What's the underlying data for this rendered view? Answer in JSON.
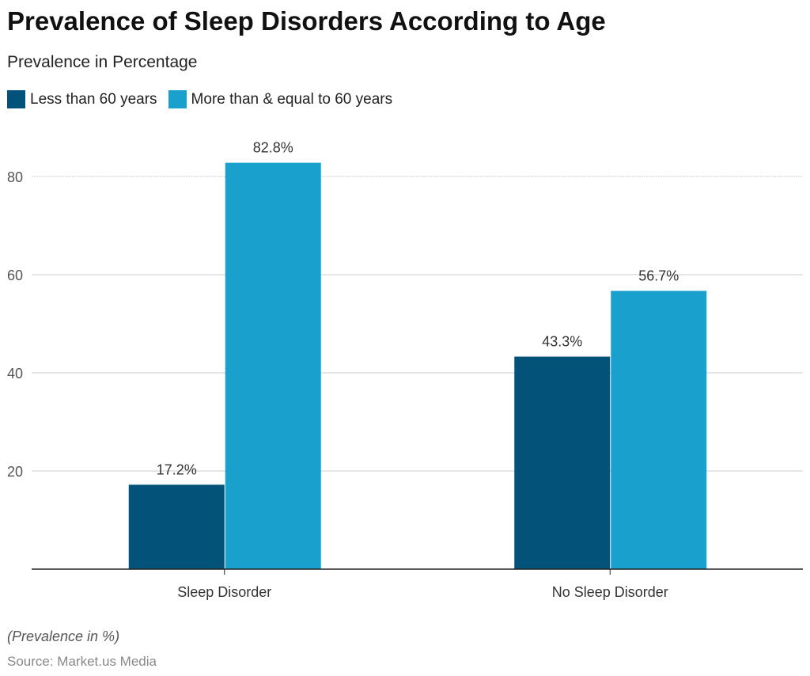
{
  "chart_data": {
    "type": "bar",
    "title": "Prevalence of Sleep Disorders According to Age",
    "subtitle": "Prevalence in Percentage",
    "categories": [
      "Sleep Disorder",
      "No Sleep Disorder"
    ],
    "series": [
      {
        "name": "Less than 60 years",
        "color": "#03527a",
        "values": [
          17.2,
          43.3
        ],
        "labels": [
          "17.2%",
          "43.3%"
        ]
      },
      {
        "name": "More than & equal to 60 years",
        "color": "#19a0cd",
        "values": [
          82.8,
          56.7
        ],
        "labels": [
          "82.8%",
          "56.7%"
        ]
      }
    ],
    "yticks": [
      20,
      40,
      60,
      80
    ],
    "ytick_labels": [
      "20",
      "40",
      "60",
      "80"
    ],
    "ylim": [
      0,
      90
    ],
    "xlabel": "",
    "ylabel": "",
    "grid": true,
    "legend": "top-left",
    "note": "(Prevalence in %)",
    "source": "Source: Market.us Media"
  }
}
